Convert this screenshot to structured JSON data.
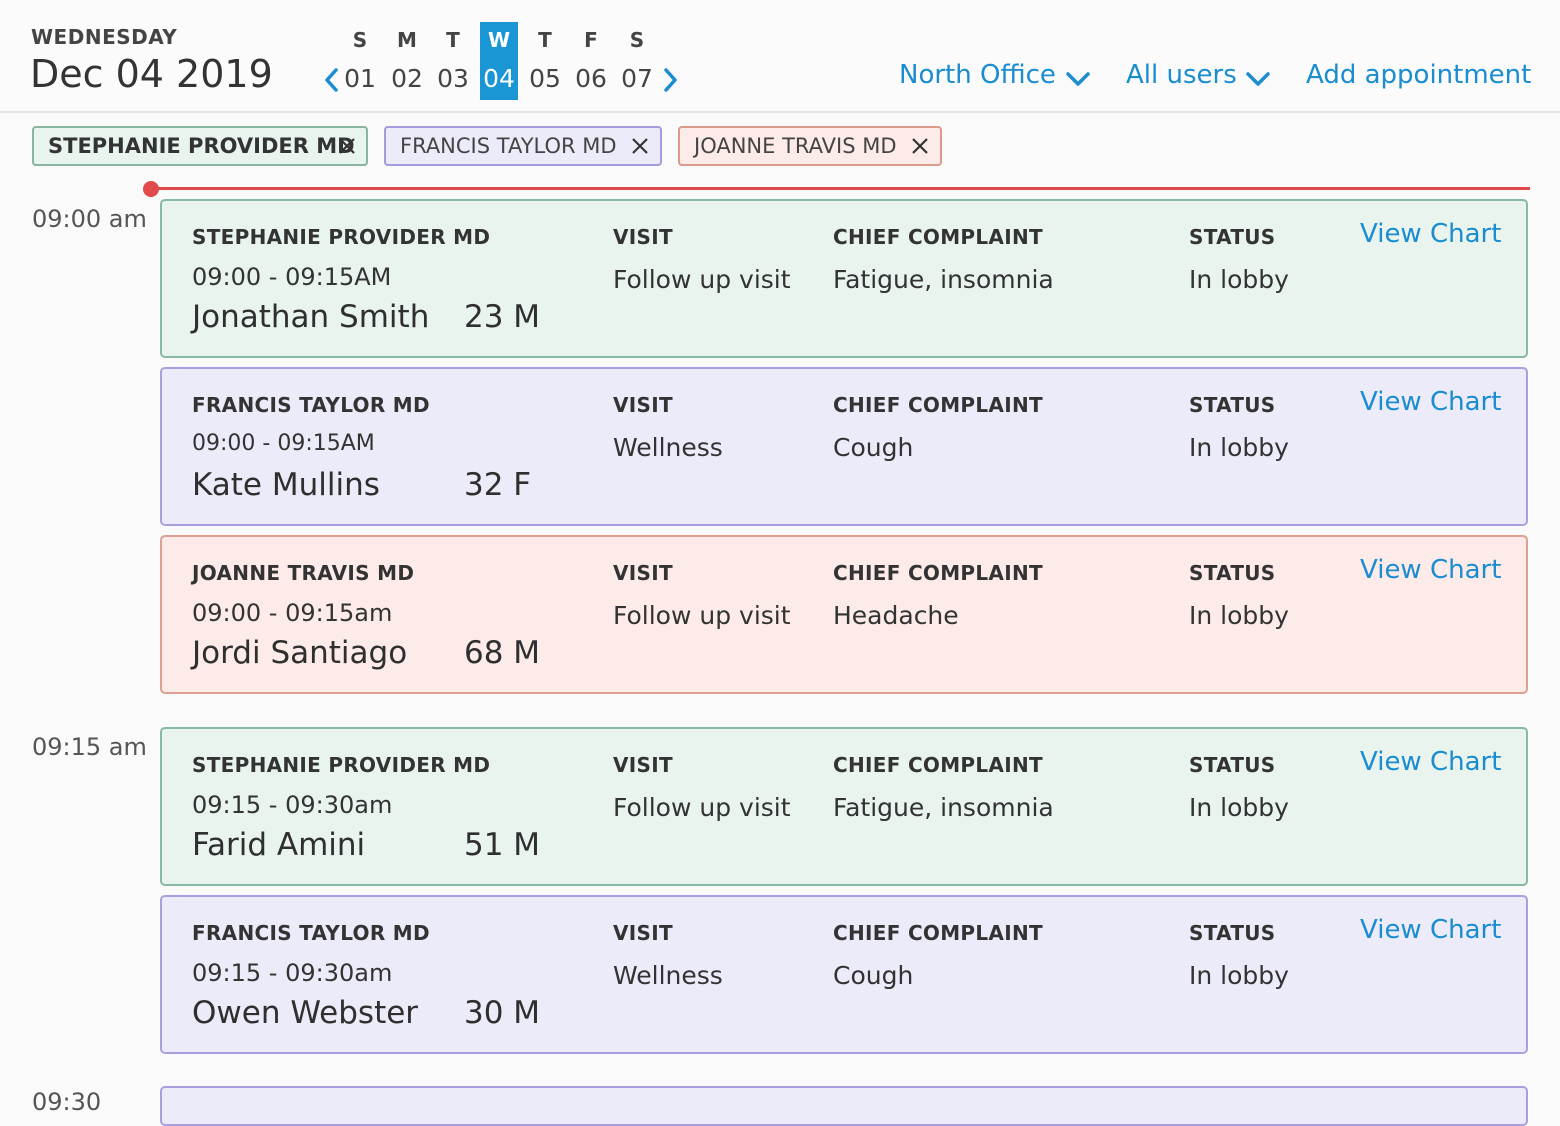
{
  "header": {
    "weekday": "WEDNESDAY",
    "date": "Dec 04 2019",
    "days": [
      {
        "letter": "S",
        "num": "01"
      },
      {
        "letter": "M",
        "num": "02"
      },
      {
        "letter": "T",
        "num": "03"
      },
      {
        "letter": "W",
        "num": "04"
      },
      {
        "letter": "T",
        "num": "05"
      },
      {
        "letter": "F",
        "num": "06"
      },
      {
        "letter": "S",
        "num": "07"
      }
    ],
    "selected_day": "04",
    "office": "North Office",
    "users": "All users",
    "add": "Add appointment"
  },
  "filters": [
    "STEPHANIE PROVIDER MD",
    "FRANCIS TAYLOR MD",
    "JOANNE TRAVIS MD"
  ],
  "labels": {
    "visit": "VISIT",
    "complaint": "CHIEF COMPLAINT",
    "status": "STATUS",
    "view_chart": "View Chart"
  },
  "slots": [
    {
      "time": "09:00 am"
    },
    {
      "time": "09:15 am"
    },
    {
      "time": "09:30"
    }
  ],
  "appointments": [
    {
      "provider": "STEPHANIE PROVIDER MD",
      "time": "09:00 - 09:15AM",
      "name": "Jonathan Smith",
      "age": "23 M",
      "visit": "Follow up visit",
      "complaint": "Fatigue, insomnia",
      "status": "In lobby"
    },
    {
      "provider": "FRANCIS TAYLOR MD",
      "time": "09:00 - 09:15AM",
      "name": "Kate Mullins",
      "age": "32 F",
      "visit": "Wellness",
      "complaint": "Cough",
      "status": "In lobby"
    },
    {
      "provider": "JOANNE TRAVIS MD",
      "time": "09:00 - 09:15am",
      "name": "Jordi Santiago",
      "age": "68 M",
      "visit": "Follow up visit",
      "complaint": "Headache",
      "status": "In lobby"
    },
    {
      "provider": "STEPHANIE PROVIDER MD",
      "time": "09:15 - 09:30am",
      "name": "Farid Amini",
      "age": "51 M",
      "visit": "Follow up visit",
      "complaint": "Fatigue, insomnia",
      "status": "In lobby"
    },
    {
      "provider": "FRANCIS TAYLOR MD",
      "time": "09:15 - 09:30am",
      "name": "Owen Webster",
      "age": "30 M",
      "visit": "Wellness",
      "complaint": "Cough",
      "status": "In lobby"
    }
  ],
  "colors": {
    "accent": "#1b96d5",
    "link": "#1a8cd0",
    "now_line": "#e14a4a",
    "green": "#e9f4ee",
    "purple": "#ecebf9",
    "pink": "#fcebe8"
  }
}
